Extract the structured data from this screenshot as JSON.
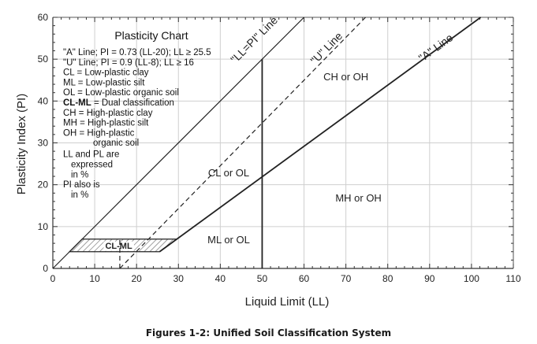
{
  "chart_data": {
    "type": "line",
    "title": "Plasticity Chart",
    "xlabel": "Liquid Limit (LL)",
    "ylabel": "Plasticity Index (PI)",
    "xlim": [
      0,
      110
    ],
    "ylim": [
      0,
      60
    ],
    "xticks": [
      0,
      10,
      20,
      30,
      40,
      50,
      60,
      70,
      80,
      90,
      100,
      110
    ],
    "yticks": [
      0,
      10,
      20,
      30,
      40,
      50,
      60
    ],
    "grid": true,
    "series": [
      {
        "name": "\"LL=PI\" Line",
        "style": "solid",
        "x": [
          0,
          60
        ],
        "y": [
          0,
          60
        ]
      },
      {
        "name": "\"U\" Line",
        "style": "dashed",
        "x": [
          16,
          74.7
        ],
        "y": [
          0,
          60
        ],
        "vertical_x": 16,
        "vertical_to": 7
      },
      {
        "name": "\"A\" Line",
        "style": "solid",
        "x": [
          25.5,
          102.2
        ],
        "y": [
          4,
          60
        ]
      },
      {
        "name": "LL = 50",
        "style": "solid",
        "x": [
          50,
          50
        ],
        "y": [
          0,
          50
        ]
      }
    ],
    "cl_ml_zone": {
      "label": "CL-ML",
      "pi_low": 4,
      "pi_high": 7
    },
    "regions": [
      {
        "label": "CH or OH",
        "x": 70,
        "y": 45
      },
      {
        "label": "CL or OL",
        "x": 42,
        "y": 22
      },
      {
        "label": "MH or OH",
        "x": 73,
        "y": 16
      },
      {
        "label": "ML or OL",
        "x": 42,
        "y": 6
      }
    ],
    "line_labels": [
      {
        "text": "\"LL=PI\" Line",
        "x": 54,
        "y": 54,
        "angle_of": "LL=PI"
      },
      {
        "text": "\"U\" Line",
        "x": 66,
        "y": 52,
        "angle_of": "U"
      },
      {
        "text": "\"A\" Line",
        "x": 92,
        "y": 52,
        "angle_of": "A"
      }
    ],
    "legend": [
      "\"A\" Line; PI = 0.73 (LL-20); LL ≥ 25.5",
      "\"U\" Line; PI = 0.9 (LL-8); LL ≥ 16",
      "CL = Low-plastic clay",
      "ML = Low-plastic silt",
      "OL = Low-plastic organic soil",
      "CL-ML = Dual classification",
      "CH = High-plastic clay",
      "MH = High-plastic silt",
      "OH = High-plastic",
      "organic soil",
      "LL and PL are",
      "expressed",
      "in %",
      "PI also is",
      "in %"
    ]
  },
  "caption": "Figures 1-2: Unified Soil Classification System"
}
